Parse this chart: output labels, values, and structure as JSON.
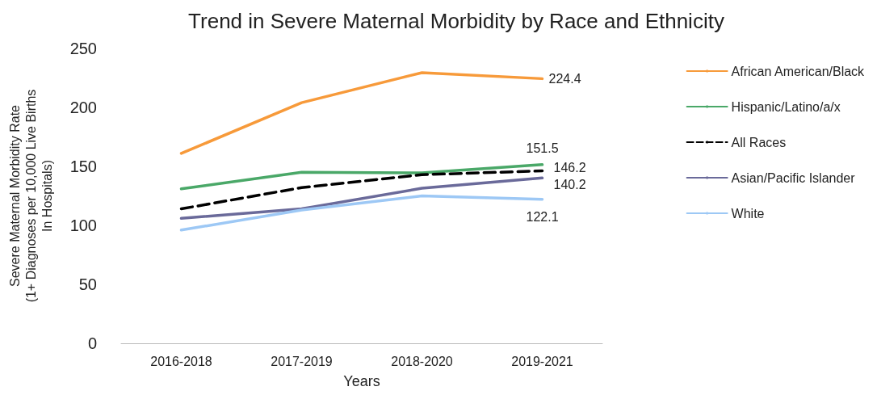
{
  "chart_data": {
    "type": "line",
    "title": "Trend in Severe Maternal Morbidity by Race and Ethnicity",
    "xlabel": "Years",
    "ylabel": "Severe Maternal Morbidity Rate\n(1+ Diagnoses per 10,000 Live Births\nIn Hospitals)",
    "categories": [
      "2016-2018",
      "2017-2019",
      "2018-2020",
      "2019-2021"
    ],
    "series": [
      {
        "name": "African American/Black",
        "color": "#f79a3a",
        "values": [
          161,
          204,
          229.5,
          224.4
        ],
        "value_labels": [
          null,
          null,
          null,
          "224.4"
        ]
      },
      {
        "name": "Hispanic/Latino/a/x",
        "color": "#4aa868",
        "values": [
          131,
          145,
          144.5,
          151.5
        ],
        "value_labels": [
          null,
          null,
          null,
          "151.5"
        ]
      },
      {
        "name": "All Races",
        "color": "#000000",
        "line_style": "dashed",
        "values": [
          114,
          132,
          143,
          146.2
        ],
        "value_labels": [
          null,
          null,
          null,
          "146.2"
        ]
      },
      {
        "name": "Asian/Pacific Islander",
        "color": "#6a6a9a",
        "values": [
          106,
          114,
          131.5,
          140.2
        ],
        "value_labels": [
          null,
          null,
          null,
          "140.2"
        ]
      },
      {
        "name": "White",
        "color": "#9dc8f5",
        "values": [
          96,
          113,
          125,
          122.1
        ],
        "value_labels": [
          null,
          null,
          null,
          "122.1"
        ]
      }
    ],
    "ylim": [
      0,
      250
    ],
    "yticks": [
      0,
      50,
      100,
      150,
      200,
      250
    ],
    "grid": false,
    "legend": "right",
    "marker": "none"
  }
}
